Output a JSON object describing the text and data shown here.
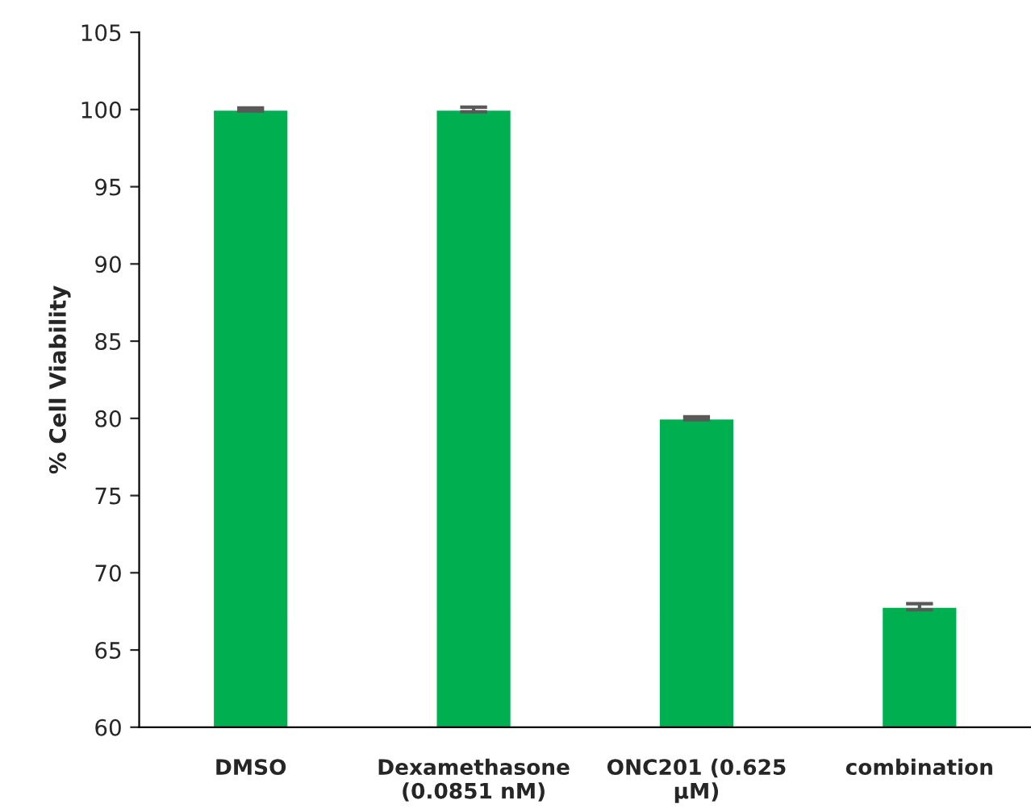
{
  "chart_data": {
    "type": "bar",
    "ylabel": "% Cell Viability",
    "categories": [
      "DMSO",
      "Dexamethasone\n(0.0851 nM)",
      "ONC201 (0.625\nµM)",
      "combination"
    ],
    "values": [
      100,
      100,
      80,
      67.8
    ],
    "errors": [
      0.1,
      0.15,
      0.1,
      0.2
    ],
    "color": "#00b050",
    "ylim": [
      60,
      105
    ],
    "yticks": [
      60,
      65,
      70,
      75,
      80,
      85,
      90,
      95,
      100,
      105
    ],
    "grid": false,
    "legend": false
  }
}
